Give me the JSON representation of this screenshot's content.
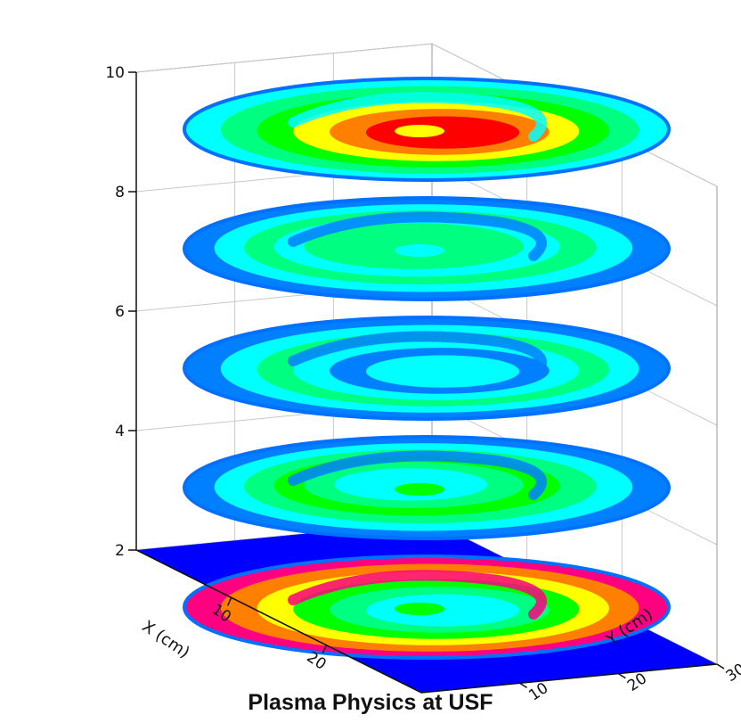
{
  "chart_data": {
    "type": "3d-stacked-contour",
    "title": "Plasma Physics at USF",
    "x_axis": {
      "label": "X (cm)",
      "ticks": [
        "10",
        "20"
      ],
      "range": [
        0,
        30
      ]
    },
    "y_axis": {
      "label": "Y (cm)",
      "ticks": [
        "10",
        "20",
        "30"
      ],
      "range": [
        0,
        30
      ]
    },
    "z_axis": {
      "label": "",
      "ticks": [
        "2",
        "4",
        "6",
        "8",
        "10"
      ],
      "range": [
        2,
        10
      ]
    },
    "grid": true,
    "color_scale": [
      "#0000ff",
      "#0080ff",
      "#00ffff",
      "#00ff80",
      "#00ff00",
      "#ffff00",
      "#ff8000",
      "#ff0000",
      "#ff0080"
    ],
    "slices": [
      {
        "z": 2,
        "background": "#0000ff",
        "rings": [
          "#ff0080",
          "#ff8000",
          "#ffff00",
          "#00ff00",
          "#00ff80",
          "#00ffff"
        ]
      },
      {
        "z": 4,
        "background": null,
        "rings": [
          "#0080ff",
          "#00ffff",
          "#00ff80",
          "#00ff00",
          "#00ff80",
          "#00ffff"
        ]
      },
      {
        "z": 6,
        "background": null,
        "rings": [
          "#0080ff",
          "#00ffff",
          "#00ff80",
          "#00ffff",
          "#0080ff",
          "#00ffff"
        ]
      },
      {
        "z": 8,
        "background": null,
        "rings": [
          "#0080ff",
          "#00ffff",
          "#00ff80",
          "#00ffff",
          "#00ff80",
          "#00ff80"
        ]
      },
      {
        "z": 10,
        "background": null,
        "rings": [
          "#00ffff",
          "#00ff80",
          "#00ff00",
          "#ffff00",
          "#ff8000",
          "#ff0000"
        ]
      }
    ]
  }
}
